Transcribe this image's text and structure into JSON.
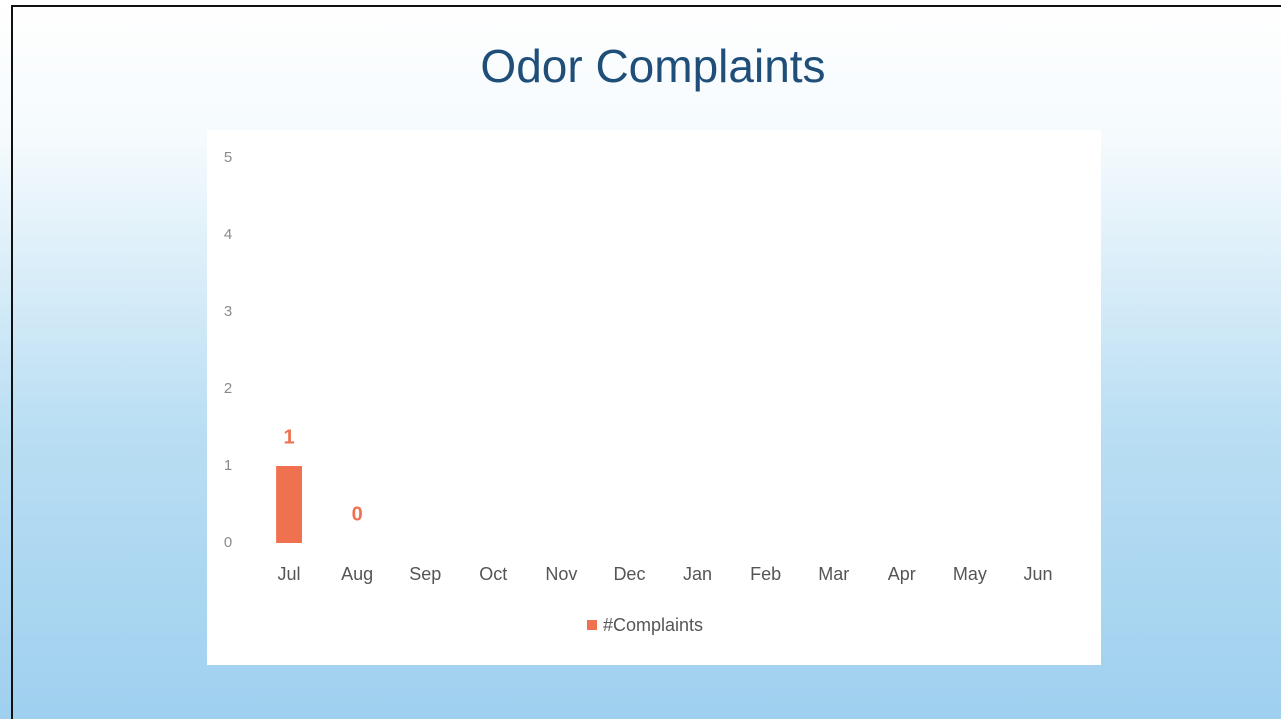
{
  "chart_data": {
    "type": "bar",
    "title": "Odor Complaints",
    "categories": [
      "Jul",
      "Aug",
      "Sep",
      "Oct",
      "Nov",
      "Dec",
      "Jan",
      "Feb",
      "Mar",
      "Apr",
      "May",
      "Jun"
    ],
    "series": [
      {
        "name": "#Complaints",
        "color": "#f0714f",
        "values": [
          1,
          0,
          null,
          null,
          null,
          null,
          null,
          null,
          null,
          null,
          null,
          null
        ]
      }
    ],
    "ylim": [
      0,
      5
    ],
    "yticks": [
      0,
      1,
      2,
      3,
      4,
      5
    ],
    "grid": false,
    "legend": "bottom",
    "data_labels": true
  }
}
